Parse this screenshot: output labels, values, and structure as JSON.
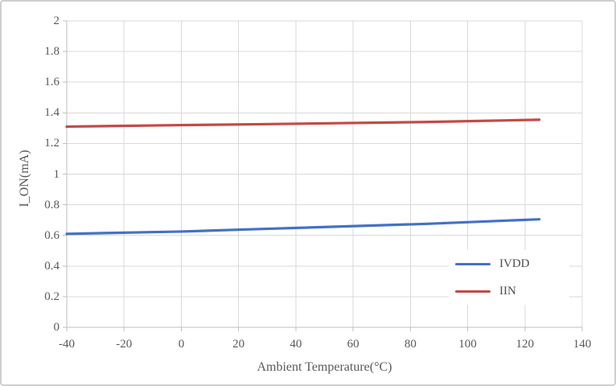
{
  "chart_data": {
    "type": "line",
    "title": "",
    "xlabel": "Ambient Temperature(°C)",
    "ylabel": "I_ON(mA)",
    "xlim": [
      -40,
      140
    ],
    "ylim": [
      0,
      2
    ],
    "x_ticks": [
      -40,
      -20,
      0,
      20,
      40,
      60,
      80,
      100,
      120,
      140
    ],
    "y_ticks": [
      0,
      0.2,
      0.4,
      0.6,
      0.8,
      1,
      1.2,
      1.4,
      1.6,
      1.8,
      2
    ],
    "grid": true,
    "legend_position": "inside-right",
    "x": [
      -40,
      0,
      25,
      85,
      125
    ],
    "series": [
      {
        "name": "IVDD",
        "color": "#4472C4",
        "values": [
          0.61,
          0.625,
          0.64,
          0.675,
          0.705
        ]
      },
      {
        "name": "IIN",
        "color": "#C24B47",
        "values": [
          1.31,
          1.32,
          1.325,
          1.34,
          1.355
        ]
      }
    ],
    "colors": {
      "gridline": "#D9D9D9",
      "axis": "#BFBFBF",
      "tick_text": "#595959",
      "background": "#FFFFFF",
      "frame_border": "#CFCFCF"
    }
  }
}
